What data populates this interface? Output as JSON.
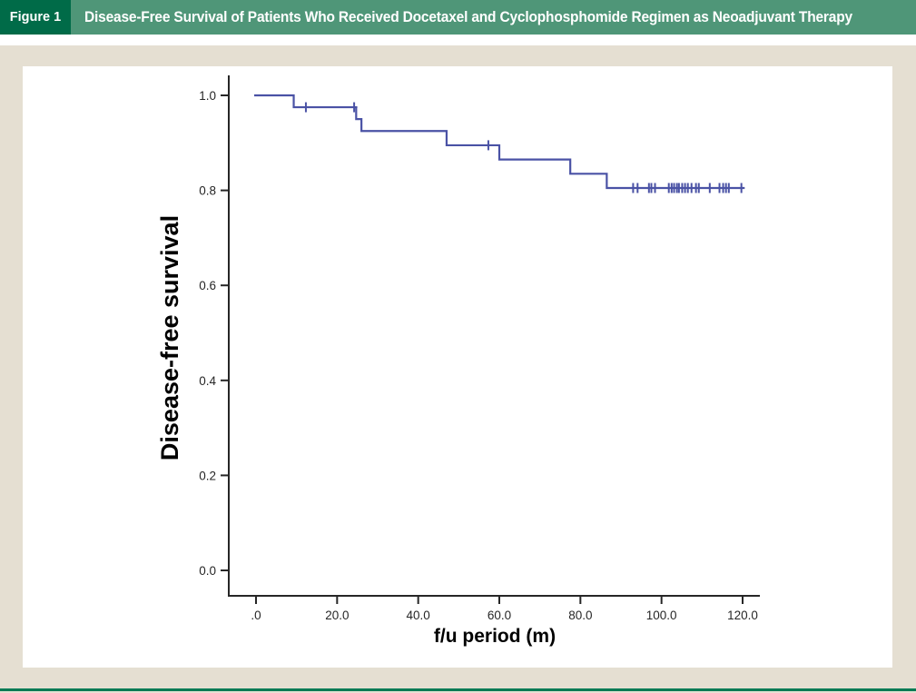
{
  "figure": {
    "label": "Figure 1",
    "title": "Disease-Free Survival of Patients Who Received Docetaxel and Cyclophosphomide Regimen as Neoadjuvant Therapy"
  },
  "colors": {
    "header_dark_green": "#006B48",
    "header_light_green": "#4F9678",
    "page_background": "#E5DFD2",
    "panel_background": "#FFFFFF",
    "bottom_rule_green": "#007A54",
    "axis": "#262626",
    "curve_blue": "#4A52A5"
  },
  "chart_data": {
    "type": "line",
    "subtype": "kaplan_meier_step_function",
    "title": "",
    "xlabel": "f/u period (m)",
    "ylabel": "Disease-free survival",
    "xlim": [
      0,
      120
    ],
    "ylim": [
      0.0,
      1.0
    ],
    "grid": false,
    "legend": false,
    "x_ticks": {
      "values": [
        0,
        20,
        40,
        60,
        80,
        100,
        120
      ],
      "labels": [
        ".0",
        "20.0",
        "40.0",
        "60.0",
        "80.0",
        "100.0",
        "120.0"
      ]
    },
    "y_ticks": {
      "values": [
        1.0,
        0.8,
        0.6,
        0.4,
        0.2,
        0.0
      ],
      "labels": [
        "1.0",
        "0.8",
        "0.6",
        "0.4",
        "0.2",
        "0.0"
      ]
    },
    "series": [
      {
        "name": "Disease-free survival",
        "color": "#4A52A5",
        "start": {
          "t": 0.0,
          "s": 1.0
        },
        "steps": [
          {
            "t": 9.3,
            "s": 0.975
          },
          {
            "t": 24.7,
            "s": 0.95
          },
          {
            "t": 26.0,
            "s": 0.925
          },
          {
            "t": 47.0,
            "s": 0.895
          },
          {
            "t": 60.0,
            "s": 0.865
          },
          {
            "t": 77.5,
            "s": 0.835
          },
          {
            "t": 86.5,
            "s": 0.805
          }
        ],
        "end_time": 120.5,
        "censor_marks": [
          {
            "t": 12.3,
            "s": 0.975
          },
          {
            "t": 24.2,
            "s": 0.975
          },
          {
            "t": 57.3,
            "s": 0.895
          },
          {
            "t": 93.0,
            "s": 0.805
          },
          {
            "t": 94.1,
            "s": 0.805
          },
          {
            "t": 96.9,
            "s": 0.805
          },
          {
            "t": 97.5,
            "s": 0.805
          },
          {
            "t": 98.4,
            "s": 0.805
          },
          {
            "t": 101.8,
            "s": 0.805
          },
          {
            "t": 102.5,
            "s": 0.805
          },
          {
            "t": 103.1,
            "s": 0.805
          },
          {
            "t": 103.8,
            "s": 0.805
          },
          {
            "t": 104.3,
            "s": 0.805
          },
          {
            "t": 105.1,
            "s": 0.805
          },
          {
            "t": 105.8,
            "s": 0.805
          },
          {
            "t": 106.5,
            "s": 0.805
          },
          {
            "t": 107.4,
            "s": 0.805
          },
          {
            "t": 108.5,
            "s": 0.805
          },
          {
            "t": 109.2,
            "s": 0.805
          },
          {
            "t": 111.9,
            "s": 0.805
          },
          {
            "t": 114.3,
            "s": 0.805
          },
          {
            "t": 115.2,
            "s": 0.805
          },
          {
            "t": 115.9,
            "s": 0.805
          },
          {
            "t": 116.6,
            "s": 0.805
          },
          {
            "t": 119.7,
            "s": 0.805
          }
        ]
      }
    ]
  }
}
